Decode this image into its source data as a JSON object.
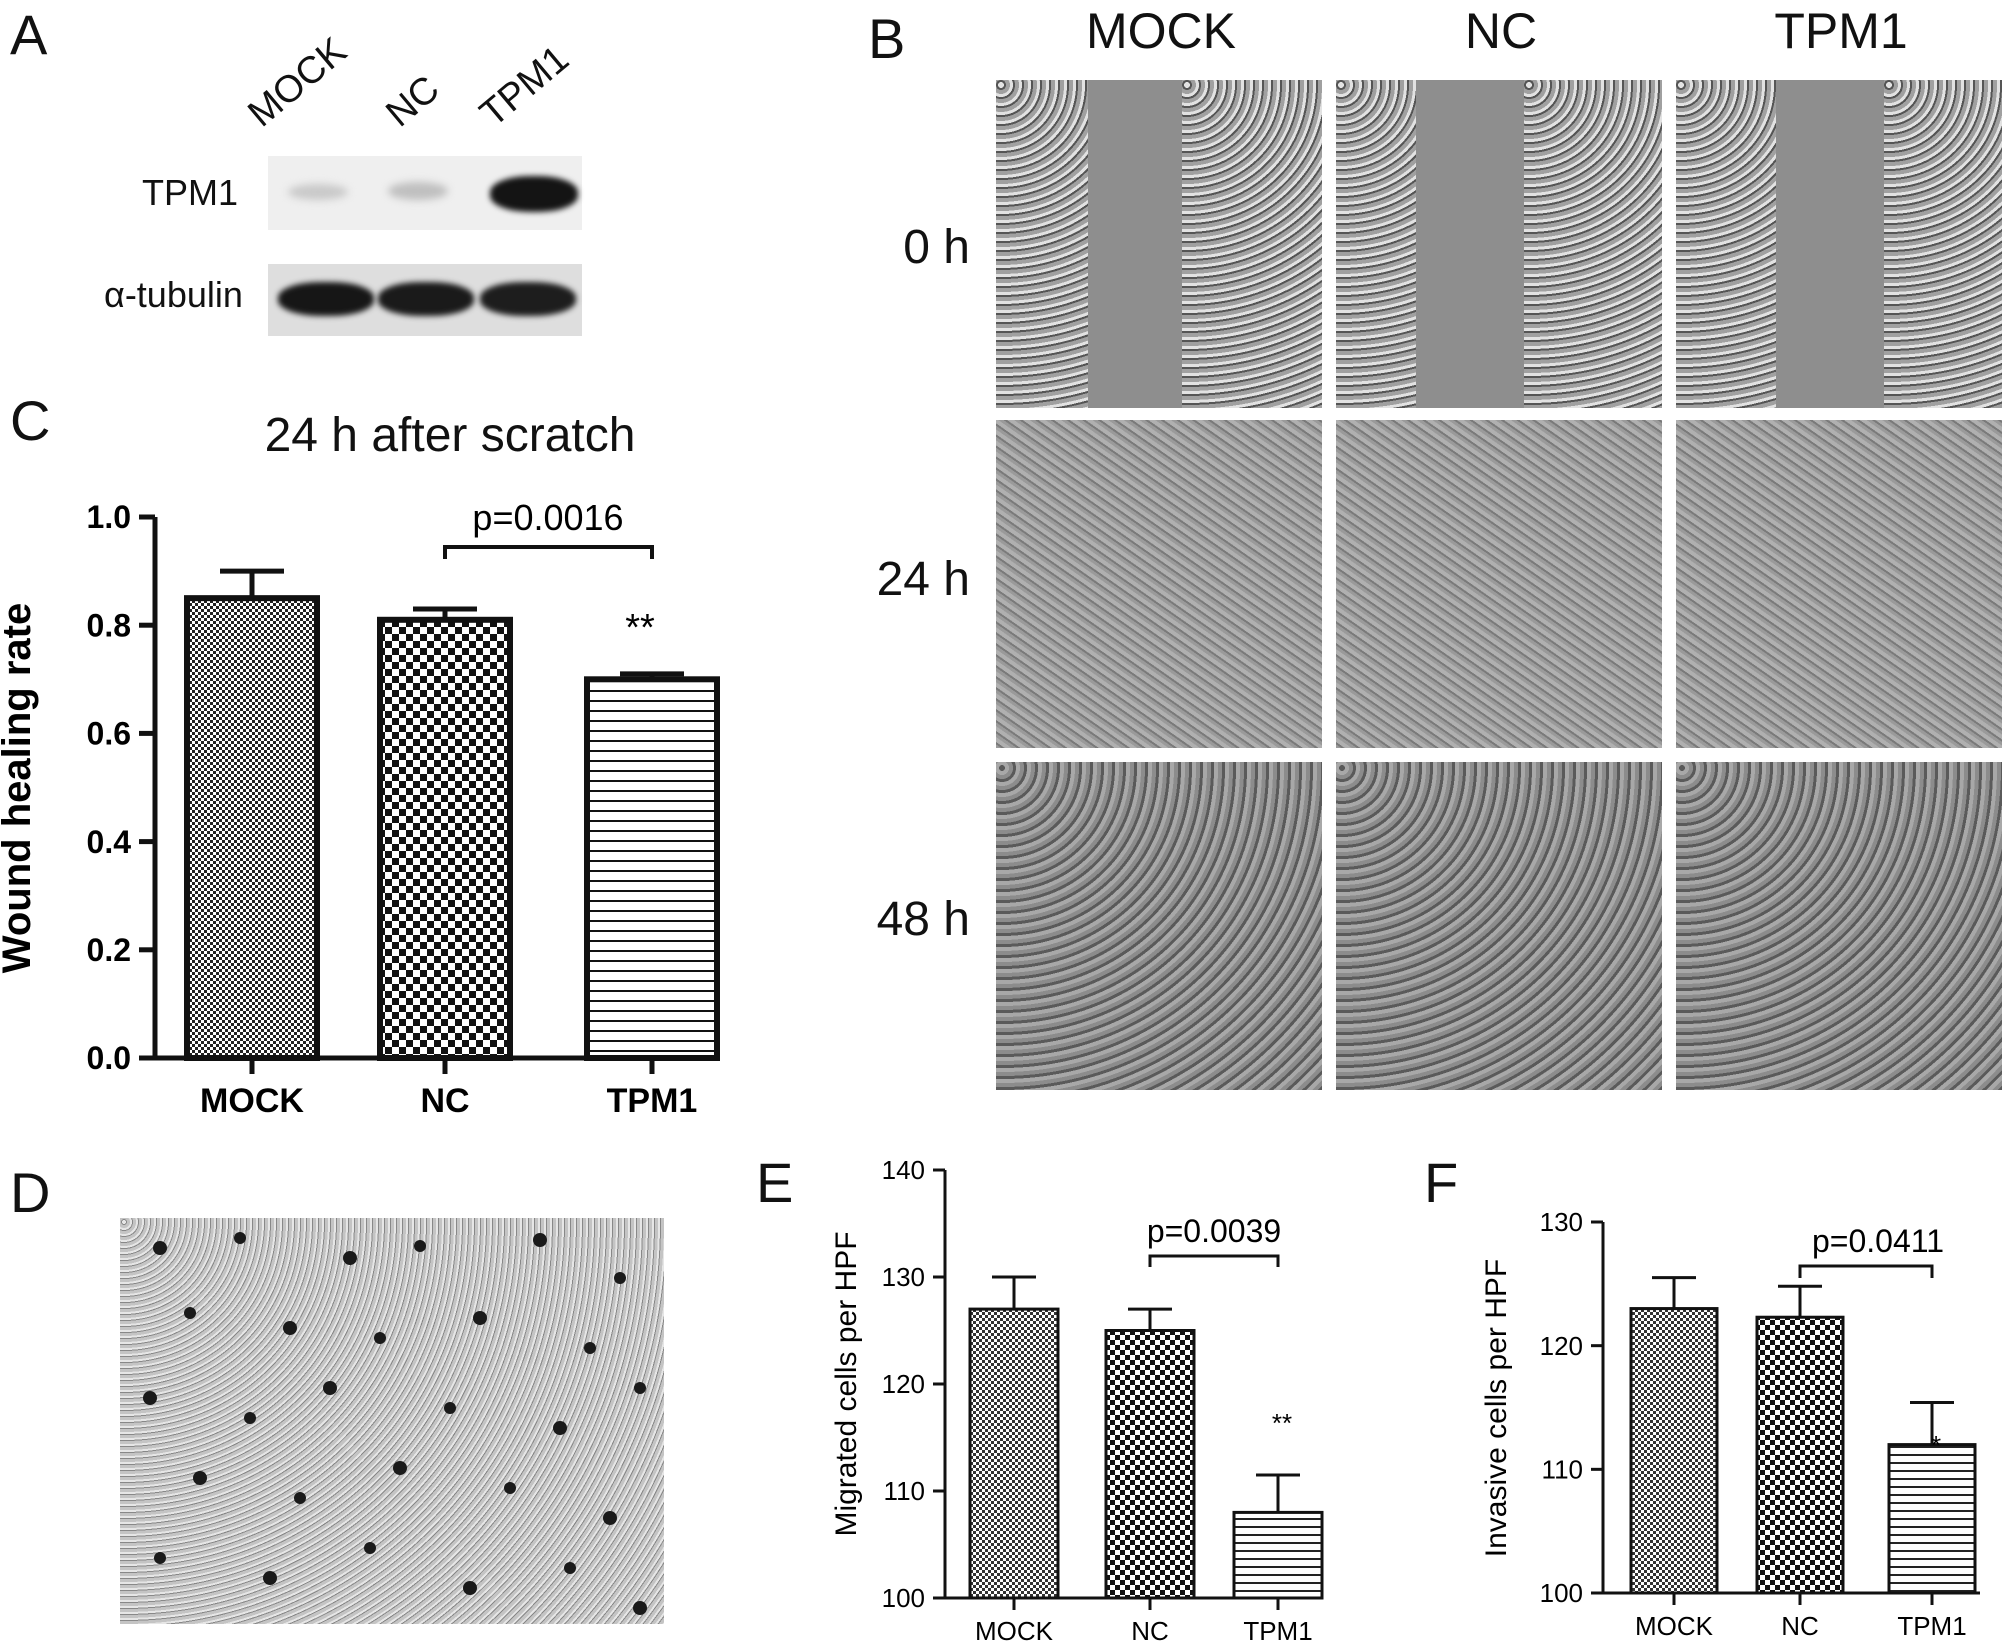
{
  "panels": {
    "A": {
      "label": "A",
      "lanes": [
        "MOCK",
        "NC",
        "TPM1"
      ],
      "rows": [
        "TPM1",
        "α-tubulin"
      ]
    },
    "B": {
      "label": "B",
      "columns": [
        "MOCK",
        "NC",
        "TPM1"
      ],
      "rows": [
        "0 h",
        "24 h",
        "48 h"
      ]
    },
    "C": {
      "label": "C",
      "pvalue": "p=0.0016",
      "stars": "**"
    },
    "D": {
      "label": "D"
    },
    "E": {
      "label": "E",
      "pvalue": "p=0.0039",
      "stars": "**"
    },
    "F": {
      "label": "F",
      "pvalue": "p=0.0411",
      "stars": "*"
    }
  },
  "chart_data": [
    {
      "type": "bar",
      "panel": "C",
      "title": "24 h after scratch",
      "xlabel": "",
      "ylabel": "Wound healing rate",
      "categories": [
        "MOCK",
        "NC",
        "TPM1"
      ],
      "values": [
        0.85,
        0.81,
        0.7
      ],
      "errors": [
        0.05,
        0.02,
        0.01
      ],
      "ylim": [
        0,
        1.0
      ],
      "yticks": [
        "0.0",
        "0.2",
        "0.4",
        "0.6",
        "0.8",
        "1.0"
      ],
      "patterns": [
        "dense-check",
        "check",
        "hstripes"
      ]
    },
    {
      "type": "bar",
      "panel": "E",
      "title": "",
      "xlabel": "",
      "ylabel": "Migrated cells per HPF",
      "categories": [
        "MOCK",
        "NC",
        "TPM1"
      ],
      "values": [
        127,
        125,
        108
      ],
      "errors": [
        3,
        2,
        3.5
      ],
      "ylim": [
        100,
        140
      ],
      "yticks": [
        "100",
        "110",
        "120",
        "130",
        "140"
      ],
      "patterns": [
        "dense-check",
        "check",
        "hstripes"
      ]
    },
    {
      "type": "bar",
      "panel": "F",
      "title": "",
      "xlabel": "",
      "ylabel": "Invasive cells per HPF",
      "categories": [
        "MOCK",
        "NC",
        "TPM1"
      ],
      "values": [
        123,
        122.3,
        112
      ],
      "errors": [
        2.5,
        2.5,
        3.4
      ],
      "ylim": [
        100,
        130
      ],
      "yticks": [
        "100",
        "110",
        "120",
        "130"
      ],
      "patterns": [
        "dense-check",
        "check",
        "hstripes"
      ]
    }
  ]
}
